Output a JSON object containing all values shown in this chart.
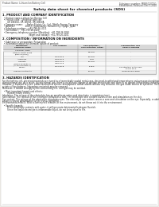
{
  "bg_color": "#ffffff",
  "page_bg": "#f0ede8",
  "header_left": "Product Name: Lithium Ion Battery Cell",
  "header_right_line1": "Substance number: MBRS120T3G",
  "header_right_line2": "Established / Revision: Dec.7,2010",
  "title": "Safety data sheet for chemical products (SDS)",
  "section1_title": "1. PRODUCT AND COMPANY IDENTIFICATION",
  "section1_lines": [
    "  • Product name: Lithium Ion Battery Cell",
    "  • Product code: Cylindrical-type cell",
    "       UR 18650U, UR 18650J, UR 18650A",
    "  • Company name:      Sanyo Electric Co., Ltd., Mobile Energy Company",
    "  • Address:               2023-1  Kaminaizen, Sumoto-City, Hyogo, Japan",
    "  • Telephone number:   +81-799-26-4111",
    "  • Fax number:   +81-799-26-4120",
    "  • Emergency telephone number (Weekday): +81-799-26-3062",
    "                                      (Night and holiday): +81-799-26-4101"
  ],
  "section2_title": "2. COMPOSITION / INFORMATION ON INGREDIENTS",
  "section2_sub": "  • Substance or preparation: Preparation",
  "section2_sub2": "  • Information about the chemical nature of product:",
  "table_headers": [
    "Chemical name",
    "CAS number",
    "Concentration /\nConcentration range",
    "Classification and\nhazard labeling"
  ],
  "table_col_header": "Component",
  "table_rows": [
    [
      "Chemical name",
      "",
      "",
      ""
    ],
    [
      "Lithium cobalt oxide\n(LiMn-Co(PO4))",
      "-",
      "30-40%",
      "-"
    ],
    [
      "Iron",
      "7439-89-6",
      "15-25%",
      "-"
    ],
    [
      "Aluminum",
      "7429-90-5",
      "2-6%",
      "-"
    ],
    [
      "Graphite\n(Mixed graphite-1)\n(AI-Mo graphite-1)",
      "7782-42-5\n7782-42-5",
      "10-20%",
      "-"
    ],
    [
      "Copper",
      "7440-50-8",
      "5-15%",
      "Sensitization of the skin\ngroup No.2"
    ],
    [
      "Organic electrolyte",
      "-",
      "10-20%",
      "Inflammable liquid"
    ]
  ],
  "section3_title": "3. HAZARDS IDENTIFICATION",
  "section3_paras": [
    "   For the battery cell, chemical materials are stored in a hermetically sealed metal case, designed to withstand temperatures and pressures/conditions occurring during normal use. As a result, during normal use, there is no physical danger of ignition or explosion and there is no danger of hazardous materials leakage.",
    "   However, if exposed to a fire, added mechanical shocks, decomposed, amber alarms without any measure, the gas inside cannot be operated. The battery cell may be in a state of fire patterns. Hazardous materials may be removed.",
    "   Moreover, if heated strongly by the surrounding fire, emit gas may be emitted."
  ],
  "section3_bullet1": "  • Most important hazard and effects:",
  "section3_human": "       Human health effects:",
  "section3_health_lines": [
    "          Inhalation: The release of the electrolyte has an anesthesia action and stimulates in respiratory tract.",
    "          Skin contact: The release of the electrolyte stimulates a skin. The electrolyte skin contact causes a sore and stimulation on the skin.",
    "          Eye contact: The release of the electrolyte stimulates eyes. The electrolyte eye contact causes a sore and stimulation on the eye. Especially, a substance that causes a strong inflammation of the eye is contained.",
    "          Environmental effects: Since a battery cell remains in the environment, do not throw out it into the environment."
  ],
  "section3_bullet2": "  • Specific hazards:",
  "section3_specific": [
    "       If the electrolyte contacts with water, it will generate detrimental hydrogen fluoride.",
    "       Since the liquid electrolyte is inflammable liquid, do not bring close to fire."
  ]
}
